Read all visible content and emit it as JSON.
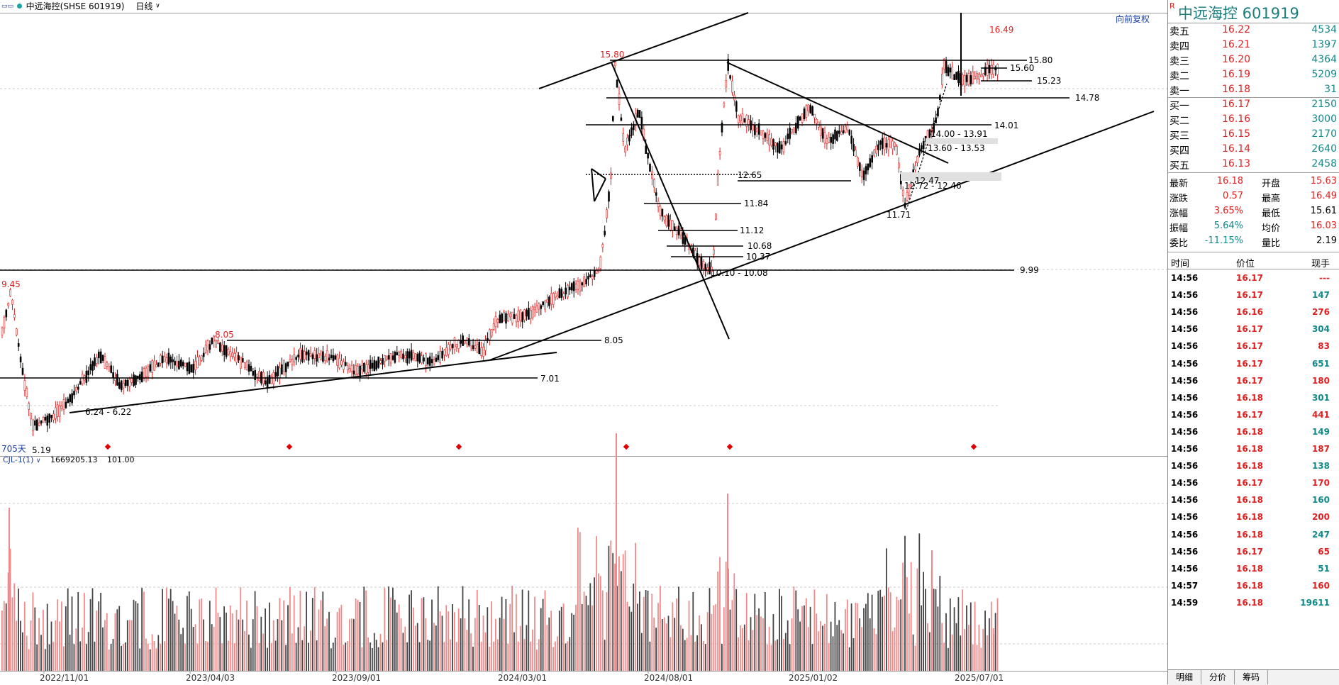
{
  "header": {
    "window_icon": "window-restore-icon",
    "symbol_label": "中远海控(SHSE 601919)",
    "period": "日线",
    "restore_label": "向前复权",
    "days_label": "705天"
  },
  "indicator": {
    "name": "CJL-1(1)",
    "value1": "1669205.13",
    "value2": "101.00"
  },
  "colors": {
    "up": "#e02020",
    "down": "#000000",
    "grid": "#c8c8c8",
    "accent": "#1a3fa8",
    "teal": "#108a8a"
  },
  "price_labels": {
    "high_marker": "16.49",
    "peak1": "15.80",
    "left_high": "9.45",
    "low": "5.19",
    "mid_high": "8.05",
    "range_low": "6.24 - 6.22",
    "l1580": "15.80",
    "l1560": "15.60",
    "l1523": "15.23",
    "l1478": "14.78",
    "l1401": "14.01",
    "l1400": "14.00 - 13.91",
    "l1360": "13.60 - 13.53",
    "l1265": "12.65",
    "l1247": "12.47",
    "l1272": "12.72 - 12.46",
    "l1171": "11.71",
    "l1184": "11.84",
    "l1112": "11.12",
    "l1068": "10.68",
    "l1037": "10.37",
    "l1010": "10.10 - 10.08",
    "l999": "9.99",
    "l805": "8.05",
    "l701": "7.01"
  },
  "x_axis": [
    "2022/11/01",
    "2023/04/03",
    "2023/09/01",
    "2024/03/01",
    "2024/08/01",
    "2025/01/02",
    "2025/07/01"
  ],
  "panel": {
    "r_flag": "R",
    "title": "中远海控  601919",
    "asks": [
      {
        "label": "卖五",
        "price": "16.22",
        "vol": "4534"
      },
      {
        "label": "卖四",
        "price": "16.21",
        "vol": "1397"
      },
      {
        "label": "卖三",
        "price": "16.20",
        "vol": "4364"
      },
      {
        "label": "卖二",
        "price": "16.19",
        "vol": "5209"
      },
      {
        "label": "卖一",
        "price": "16.18",
        "vol": "31"
      }
    ],
    "bids": [
      {
        "label": "买一",
        "price": "16.17",
        "vol": "2150"
      },
      {
        "label": "买二",
        "price": "16.16",
        "vol": "3000"
      },
      {
        "label": "买三",
        "price": "16.15",
        "vol": "2170"
      },
      {
        "label": "买四",
        "price": "16.14",
        "vol": "2640"
      },
      {
        "label": "买五",
        "price": "16.13",
        "vol": "2458"
      }
    ],
    "stats": [
      {
        "l1": "最新",
        "v1": "16.18",
        "l2": "开盘",
        "v2": "15.63"
      },
      {
        "l1": "涨跌",
        "v1": "0.57",
        "l2": "最高",
        "v2": "16.49"
      },
      {
        "l1": "涨幅",
        "v1": "3.65%",
        "l2": "最低",
        "v2": "15.61"
      },
      {
        "l1": "振幅",
        "v1": "5.64%",
        "l2": "均价",
        "v2": "16.03"
      },
      {
        "l1": "委比",
        "v1": "-11.15%",
        "l2": "量比",
        "v2": "2.19"
      }
    ],
    "ticks_header": {
      "time": "时间",
      "price": "价位",
      "vol": "现手"
    },
    "ticks": [
      {
        "time": "14:56",
        "price": "16.17",
        "vol": "---"
      },
      {
        "time": "14:56",
        "price": "16.17",
        "vol": "147"
      },
      {
        "time": "14:56",
        "price": "16.16",
        "vol": "276"
      },
      {
        "time": "14:56",
        "price": "16.17",
        "vol": "304"
      },
      {
        "time": "14:56",
        "price": "16.17",
        "vol": "83"
      },
      {
        "time": "14:56",
        "price": "16.17",
        "vol": "651"
      },
      {
        "time": "14:56",
        "price": "16.17",
        "vol": "180"
      },
      {
        "time": "14:56",
        "price": "16.18",
        "vol": "301"
      },
      {
        "time": "14:56",
        "price": "16.17",
        "vol": "441"
      },
      {
        "time": "14:56",
        "price": "16.18",
        "vol": "149"
      },
      {
        "time": "14:56",
        "price": "16.18",
        "vol": "187"
      },
      {
        "time": "14:56",
        "price": "16.18",
        "vol": "138"
      },
      {
        "time": "14:56",
        "price": "16.17",
        "vol": "170"
      },
      {
        "time": "14:56",
        "price": "16.18",
        "vol": "160"
      },
      {
        "time": "14:56",
        "price": "16.18",
        "vol": "200"
      },
      {
        "time": "14:56",
        "price": "16.18",
        "vol": "247"
      },
      {
        "time": "14:56",
        "price": "16.17",
        "vol": "65"
      },
      {
        "time": "14:56",
        "price": "16.18",
        "vol": "51"
      },
      {
        "time": "14:57",
        "price": "16.18",
        "vol": "160"
      },
      {
        "time": "14:59",
        "price": "16.18",
        "vol": "19611"
      }
    ],
    "tabs": [
      "明细",
      "分价",
      "筹码"
    ]
  }
}
